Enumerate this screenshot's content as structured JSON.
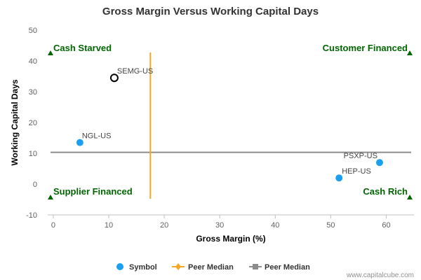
{
  "chart_data": {
    "type": "scatter",
    "title": "Gross Margin Versus Working Capital Days",
    "xlabel": "Gross Margin (%)",
    "ylabel": "Working Capital Days",
    "xlim": [
      -1,
      65
    ],
    "ylim": [
      -10,
      50
    ],
    "xticks": [
      0,
      10,
      20,
      30,
      40,
      50,
      60
    ],
    "yticks": [
      -10,
      0,
      10,
      20,
      30,
      40,
      50
    ],
    "grid": false,
    "legend_position": "bottom",
    "points": [
      {
        "label": "SEMG-US",
        "x": 11,
        "y": 34.5,
        "style": "hollow-black"
      },
      {
        "label": "NGL-US",
        "x": 4.8,
        "y": 13.5,
        "style": "filled-blue"
      },
      {
        "label": "PSXP-US",
        "x": 58.8,
        "y": 7,
        "style": "filled-blue"
      },
      {
        "label": "HEP-US",
        "x": 51.5,
        "y": 2,
        "style": "filled-blue"
      }
    ],
    "peer_median_x": 17.5,
    "peer_median_y": 10.3,
    "quadrants": [
      {
        "label": "Cash Starved",
        "corner": "top-left"
      },
      {
        "label": "Customer Financed",
        "corner": "top-right"
      },
      {
        "label": "Supplier Financed",
        "corner": "bottom-left"
      },
      {
        "label": "Cash Rich",
        "corner": "bottom-right"
      }
    ],
    "legend": [
      {
        "label": "Symbol",
        "marker": "circle",
        "color": "#1aa0ef"
      },
      {
        "label": "Peer Median",
        "marker": "diamond-line",
        "color": "#f5a623"
      },
      {
        "label": "Peer Median",
        "marker": "square-line",
        "color": "#8c8c8c"
      }
    ],
    "colors": {
      "symbol": "#1aa0ef",
      "highlight_stroke": "#000000",
      "median_x_line": "#f5a623",
      "median_y_line": "#8c8c8c",
      "quadrant_text": "#006600",
      "axis": "#c0c0c0"
    }
  },
  "credit": "www.capitalcube.com"
}
